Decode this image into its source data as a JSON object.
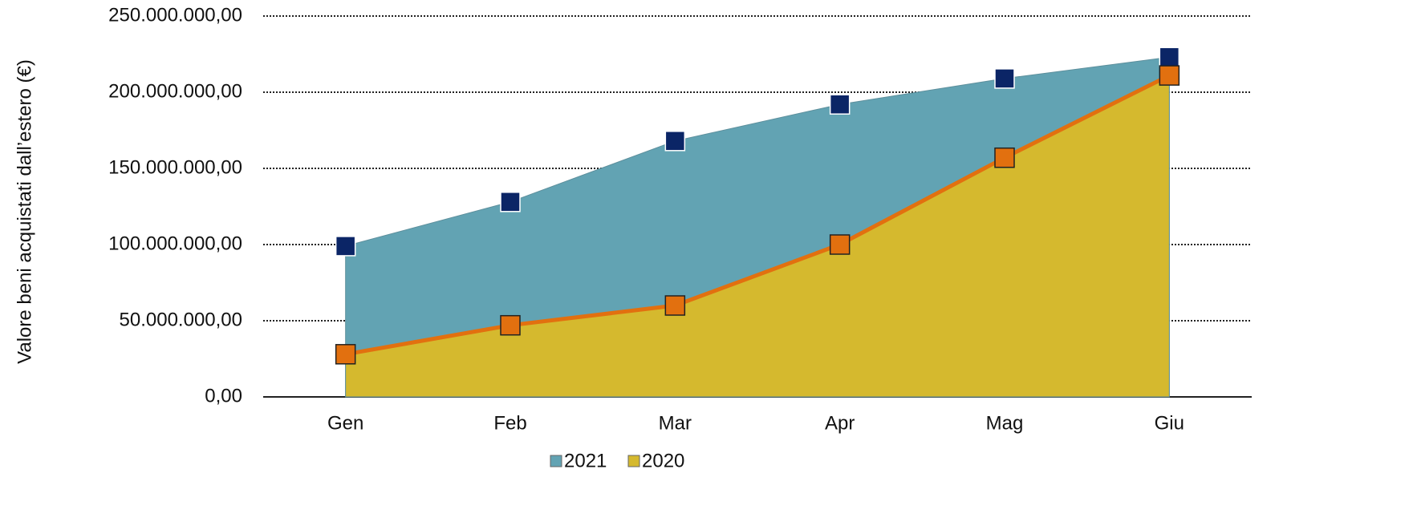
{
  "chart_data": {
    "type": "area",
    "ylabel": "Valore beni acquistati dall’estero (€)",
    "categories": [
      "Gen",
      "Feb",
      "Mar",
      "Apr",
      "Mag",
      "Giu"
    ],
    "series": [
      {
        "name": "2021",
        "color": "#62a3b3",
        "marker_color": "#0b2566",
        "values": [
          99000000,
          128000000,
          168000000,
          192000000,
          209000000,
          223000000
        ]
      },
      {
        "name": "2020",
        "color": "#d5b92e",
        "marker_color": "#e2700f",
        "line": true,
        "values": [
          28000000,
          47000000,
          60000000,
          100000000,
          157000000,
          211000000
        ]
      }
    ],
    "ylim": [
      0,
      250000000
    ],
    "yticks": [
      {
        "value": 0,
        "label": "0,00"
      },
      {
        "value": 50000000,
        "label": "50.000.000,00"
      },
      {
        "value": 100000000,
        "label": "100.000.000,00"
      },
      {
        "value": 150000000,
        "label": "150.000.000,00"
      },
      {
        "value": 200000000,
        "label": "200.000.000,00"
      },
      {
        "value": 250000000,
        "label": "250.000.000,00"
      }
    ],
    "grid": true,
    "legend": "bottom"
  }
}
